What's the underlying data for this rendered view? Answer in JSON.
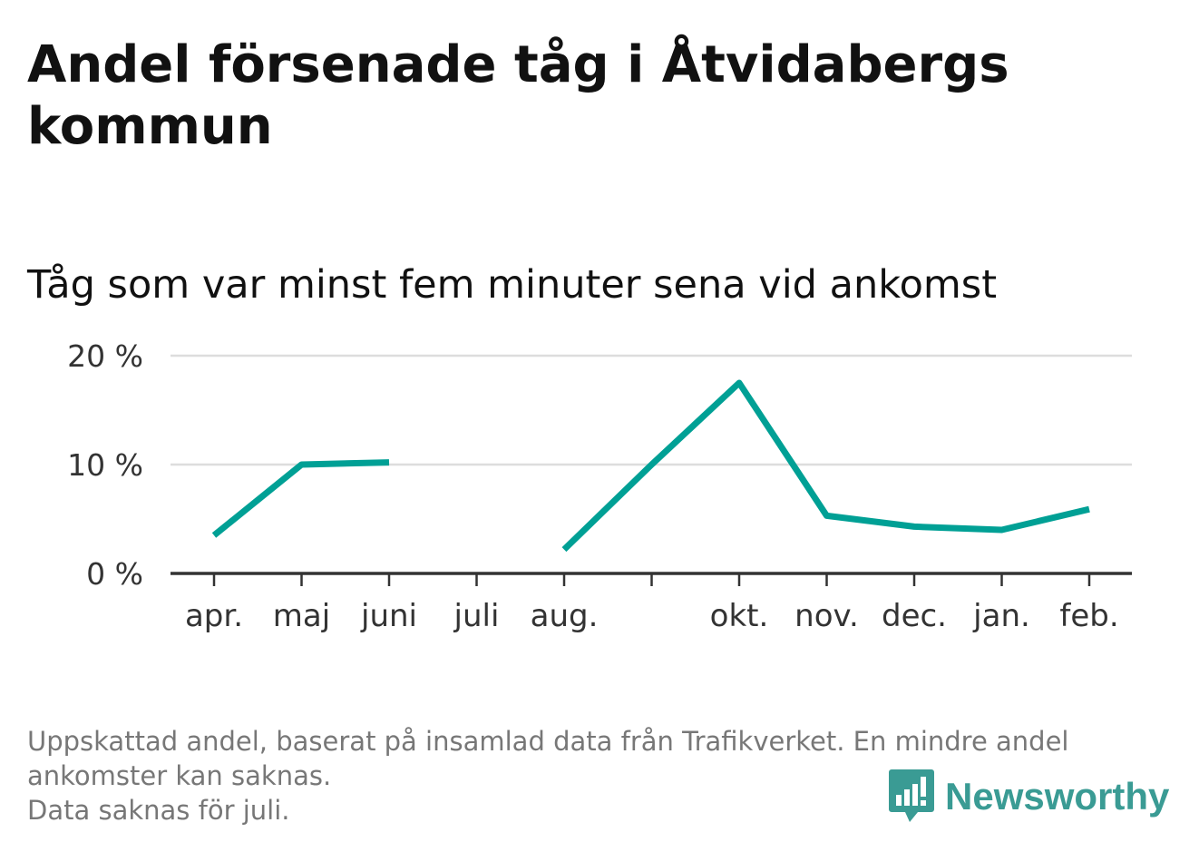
{
  "title": "Andel försenade tåg i Åtvidabergs kommun",
  "subtitle": "Tåg som var minst fem minuter sena vid ankomst",
  "footnote": {
    "line1": "Uppskattad andel, baserat på insamlad data från Trafikverket. En mindre andel",
    "line2": "ankomster kan saknas.",
    "line3": "Data saknas för juli."
  },
  "brand": {
    "name": "Newsworthy",
    "icon": "newsworthy-bar-chart-icon",
    "color": "#3a9b94"
  },
  "colors": {
    "line": "#00a095",
    "grid": "#dddddd",
    "axis": "#333333",
    "text": "#333333"
  },
  "chart_data": {
    "type": "line",
    "title": "Andel försenade tåg i Åtvidabergs kommun",
    "subtitle": "Tåg som var minst fem minuter sena vid ankomst",
    "categories": [
      "apr.",
      "maj",
      "juni",
      "juli",
      "aug.",
      "",
      "okt.",
      "nov.",
      "dec.",
      "jan.",
      "feb."
    ],
    "series": [
      {
        "values": [
          3.5,
          10.0,
          10.2,
          null,
          2.2,
          10.0,
          17.5,
          5.3,
          4.3,
          4.0,
          5.9
        ]
      }
    ],
    "ylim": [
      0,
      20
    ],
    "yticks": [
      0,
      10,
      20
    ],
    "ytick_labels": [
      "0 %",
      "10 %",
      "20 %"
    ],
    "grid": true,
    "legend": "none"
  }
}
